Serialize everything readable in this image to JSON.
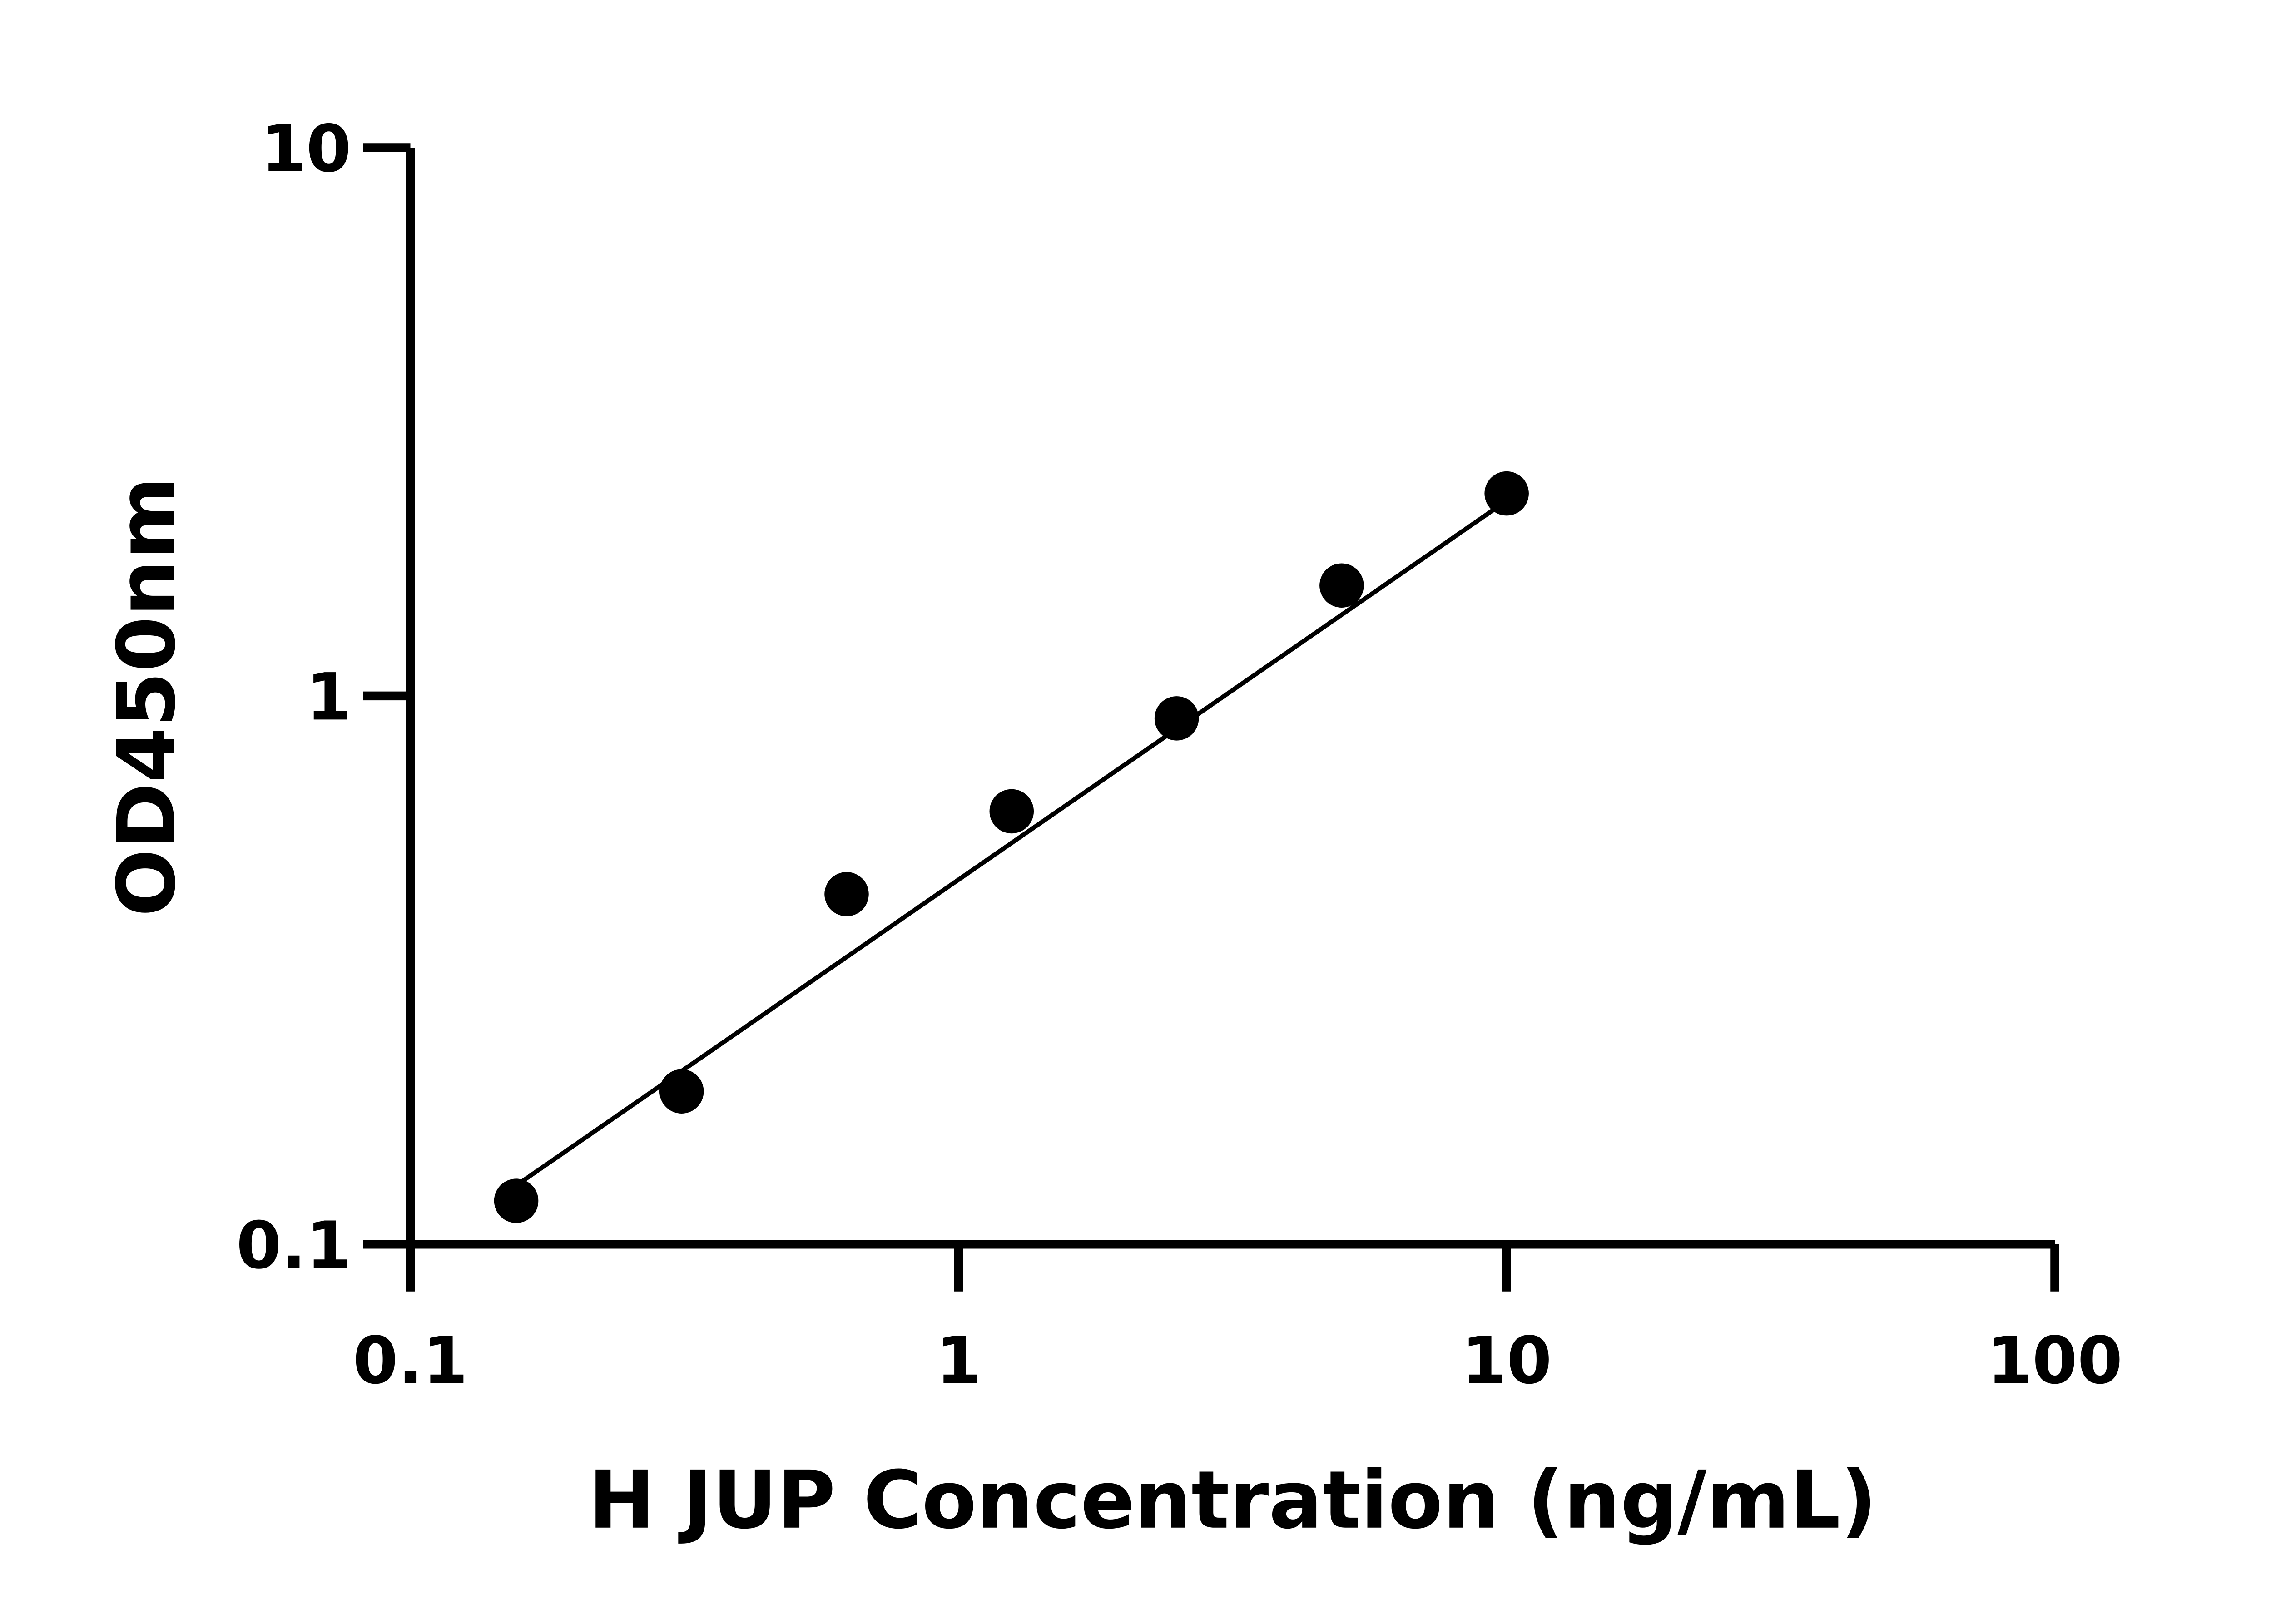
{
  "chart_data": {
    "type": "scatter",
    "title": "",
    "xlabel": "H JUP Concentration (ng/mL)",
    "ylabel": "OD450nm",
    "x_scale": "log",
    "y_scale": "log",
    "xlim": [
      0.1,
      100
    ],
    "ylim": [
      0.1,
      10
    ],
    "x_ticks": [
      "0.1",
      "1",
      "10",
      "100"
    ],
    "y_ticks": [
      "0.1",
      "1",
      "10"
    ],
    "grid": false,
    "colors": {
      "points": "#000000",
      "line": "#000000"
    },
    "x": [
      0.156,
      0.3125,
      0.625,
      1.25,
      2.5,
      5,
      10
    ],
    "y": [
      0.12,
      0.19,
      0.435,
      0.616,
      0.91,
      1.59,
      2.34
    ],
    "fit_line": {
      "x": [
        0.156,
        10
      ],
      "y": [
        0.128,
        2.27
      ]
    }
  }
}
